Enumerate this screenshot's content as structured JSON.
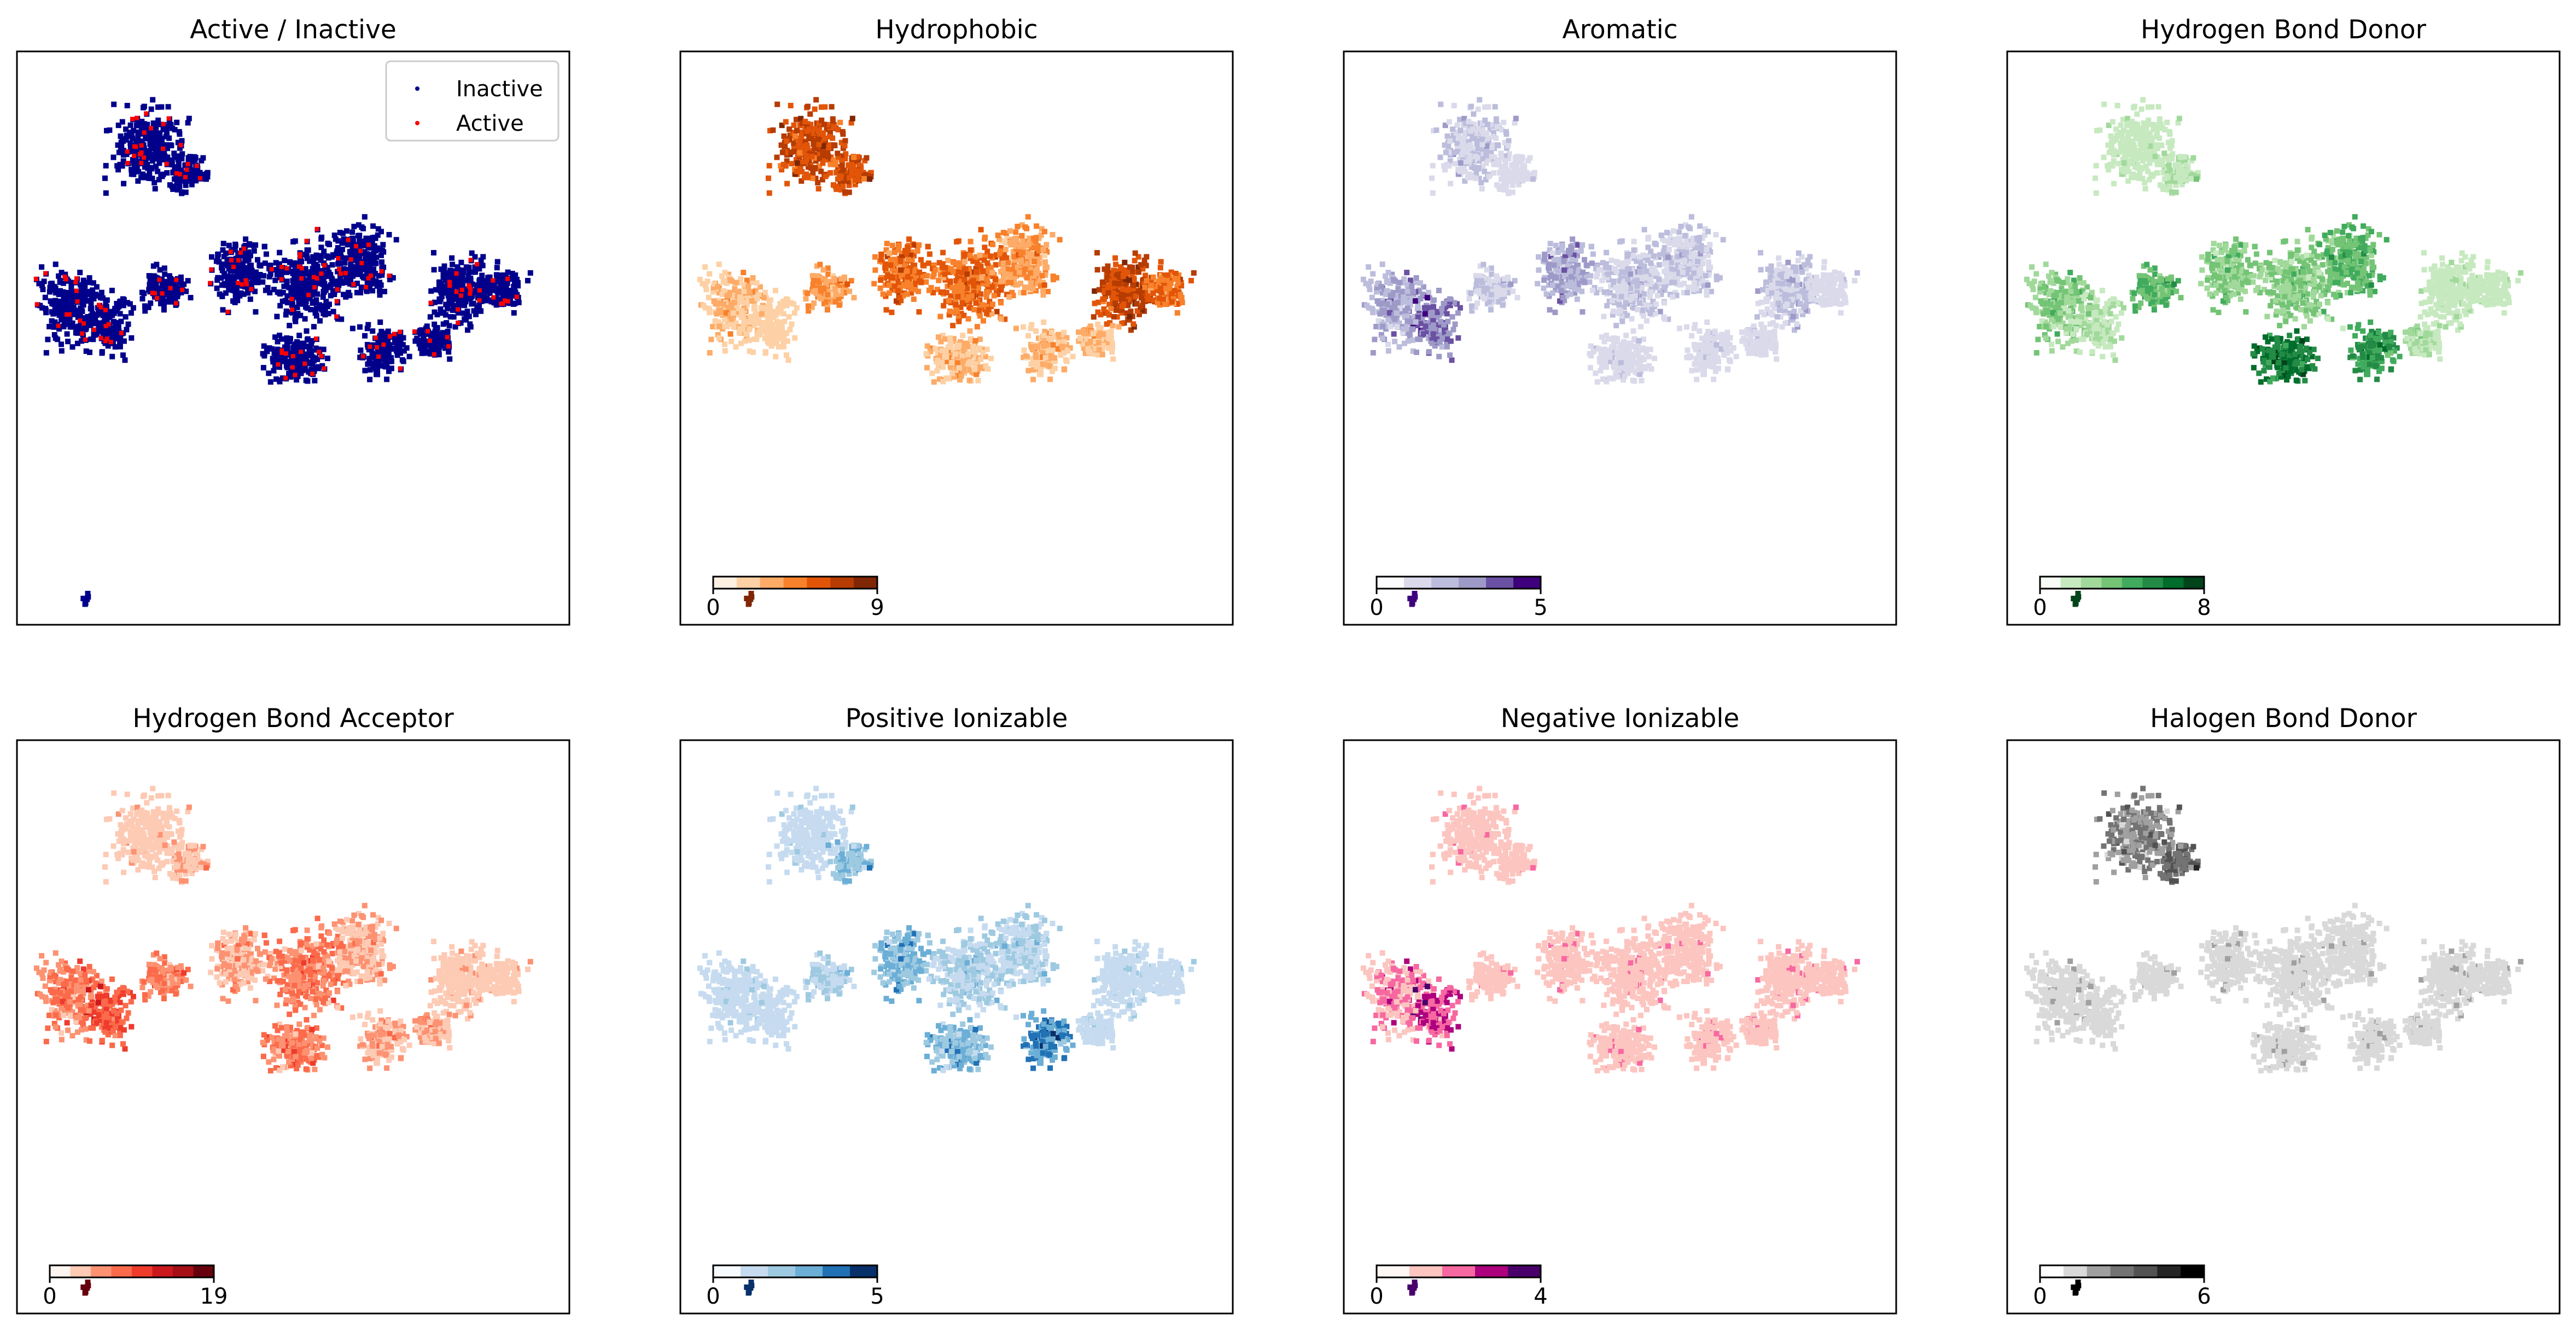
{
  "chart_data": [
    {
      "type": "scatter",
      "title": "Active / Inactive",
      "xlabel": "",
      "ylabel": "",
      "legend": {
        "placement": "top-right",
        "entries": [
          "Inactive",
          "Active"
        ]
      },
      "series": [
        {
          "name": "Inactive",
          "color": "#00008b"
        },
        {
          "name": "Active",
          "color": "#ff0000"
        }
      ],
      "grid": false,
      "ticks": false
    },
    {
      "type": "scatter",
      "title": "Hydrophobic",
      "colorbar": {
        "min": "0",
        "max": "9",
        "colors": [
          "#fff1e2",
          "#fdd1a5",
          "#fdab67",
          "#f8812c",
          "#e25508",
          "#b63c02",
          "#7f2704"
        ]
      },
      "grid": false,
      "ticks": false
    },
    {
      "type": "scatter",
      "title": "Aromatic",
      "colorbar": {
        "min": "0",
        "max": "5",
        "colors": [
          "#fcfbfd",
          "#dadaeb",
          "#bcbddc",
          "#9e9ac8",
          "#6a51a3",
          "#3f007d"
        ]
      },
      "grid": false,
      "ticks": false
    },
    {
      "type": "scatter",
      "title": "Hydrogen Bond Donor",
      "colorbar": {
        "min": "0",
        "max": "8",
        "colors": [
          "#f7fcf5",
          "#c7e9c0",
          "#a1d99b",
          "#74c476",
          "#41ab5d",
          "#238b45",
          "#006d2c",
          "#00441b"
        ]
      },
      "grid": false,
      "ticks": false
    },
    {
      "type": "scatter",
      "title": "Hydrogen Bond Acceptor",
      "colorbar": {
        "min": "0",
        "max": "19",
        "colors": [
          "#fff5f0",
          "#fdcab4",
          "#fc9272",
          "#fb6a4a",
          "#ef3b2c",
          "#cb181d",
          "#a50f15",
          "#67000d"
        ]
      },
      "grid": false,
      "ticks": false
    },
    {
      "type": "scatter",
      "title": "Positive Ionizable",
      "colorbar": {
        "min": "0",
        "max": "5",
        "colors": [
          "#f7fbff",
          "#c6dbef",
          "#9ecae1",
          "#6baed6",
          "#2171b5",
          "#08306b"
        ]
      },
      "grid": false,
      "ticks": false
    },
    {
      "type": "scatter",
      "title": "Negative Ionizable",
      "colorbar": {
        "min": "0",
        "max": "4",
        "colors": [
          "#fff7f3",
          "#fcc5c0",
          "#f768a1",
          "#ae017e",
          "#49006a"
        ]
      },
      "grid": false,
      "ticks": false
    },
    {
      "type": "scatter",
      "title": "Halogen Bond Donor",
      "colorbar": {
        "min": "0",
        "max": "6",
        "colors": [
          "#ffffff",
          "#d9d9d9",
          "#a0a0a0",
          "#737373",
          "#525252",
          "#252525",
          "#000000"
        ]
      },
      "grid": false,
      "ticks": false
    }
  ]
}
